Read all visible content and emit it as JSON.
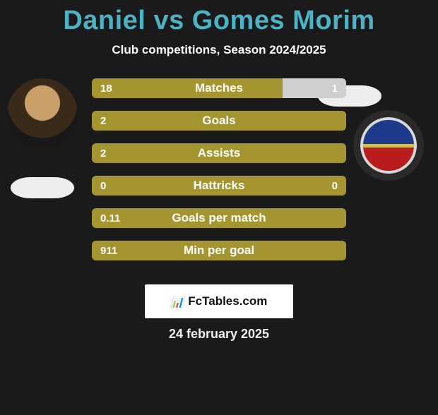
{
  "title_color": "#4db3c4",
  "player_left": "Daniel",
  "player_right": "Gomes Morim",
  "vs_word": "vs",
  "subtitle": "Club competitions, Season 2024/2025",
  "bar_color_left": "#a59531",
  "bar_color_right": "#cfcfcf",
  "bar_color_neutral": "#a59531",
  "rows": [
    {
      "label": "Matches",
      "left_val": "18",
      "right_val": "1",
      "left_pct": 75,
      "right_pct": 25
    },
    {
      "label": "Goals",
      "left_val": "2",
      "right_val": "0",
      "left_pct": 100,
      "right_pct": 0
    },
    {
      "label": "Assists",
      "left_val": "2",
      "right_val": "0",
      "left_pct": 100,
      "right_pct": 0
    },
    {
      "label": "Hattricks",
      "left_val": "0",
      "right_val": "0",
      "left_pct": 0,
      "right_pct": 0
    },
    {
      "label": "Goals per match",
      "left_val": "0.11",
      "right_val": "",
      "left_pct": 100,
      "right_pct": 0
    },
    {
      "label": "Min per goal",
      "left_val": "911",
      "right_val": "",
      "left_pct": 100,
      "right_pct": 0
    }
  ],
  "footer_brand": "FcTables.com",
  "date_text": "24 february 2025",
  "avatar_left_alt": "player-photo",
  "avatar_right_alt": "club-crest",
  "crest_colors": {
    "top": "#1e3a8a",
    "bottom": "#b91c1c",
    "stripe": "#d4c05a",
    "ring": "#d9d9d9"
  }
}
